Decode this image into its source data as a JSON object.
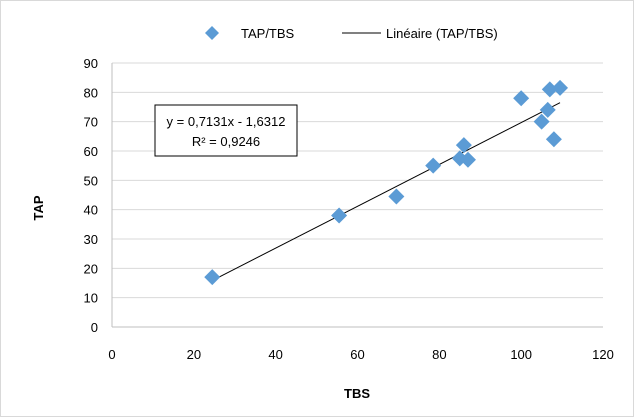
{
  "chart_data": {
    "type": "scatter",
    "xlabel": "TBS",
    "ylabel": "TAP",
    "xlim": [
      0,
      120
    ],
    "ylim": [
      0,
      90
    ],
    "x_ticks": [
      "0",
      "20",
      "40",
      "60",
      "80",
      "100",
      "120"
    ],
    "y_ticks": [
      "0",
      "10",
      "20",
      "30",
      "40",
      "50",
      "60",
      "70",
      "80",
      "90"
    ],
    "grid": "horizontal",
    "legend_placement": "top",
    "series": [
      {
        "name": "TAP/TBS",
        "color": "#5b9bd5",
        "marker": "diamond",
        "points": [
          {
            "x": 24.5,
            "y": 17
          },
          {
            "x": 55.5,
            "y": 38
          },
          {
            "x": 69.5,
            "y": 44.5
          },
          {
            "x": 78.5,
            "y": 55
          },
          {
            "x": 85,
            "y": 57.5
          },
          {
            "x": 86,
            "y": 62
          },
          {
            "x": 87,
            "y": 57
          },
          {
            "x": 100,
            "y": 78
          },
          {
            "x": 105,
            "y": 70
          },
          {
            "x": 106.5,
            "y": 74
          },
          {
            "x": 107,
            "y": 81
          },
          {
            "x": 108,
            "y": 64
          },
          {
            "x": 109.5,
            "y": 81.5
          }
        ]
      }
    ],
    "trendline": {
      "name": "Linéaire (TAP/TBS)",
      "type": "linear",
      "color": "#000000",
      "slope": 0.7131,
      "intercept": -1.6312,
      "x_range": [
        24.5,
        109.5
      ],
      "equation_line1": "y = 0,7131x - 1,6312",
      "equation_line2": "R² = 0,9246"
    }
  }
}
